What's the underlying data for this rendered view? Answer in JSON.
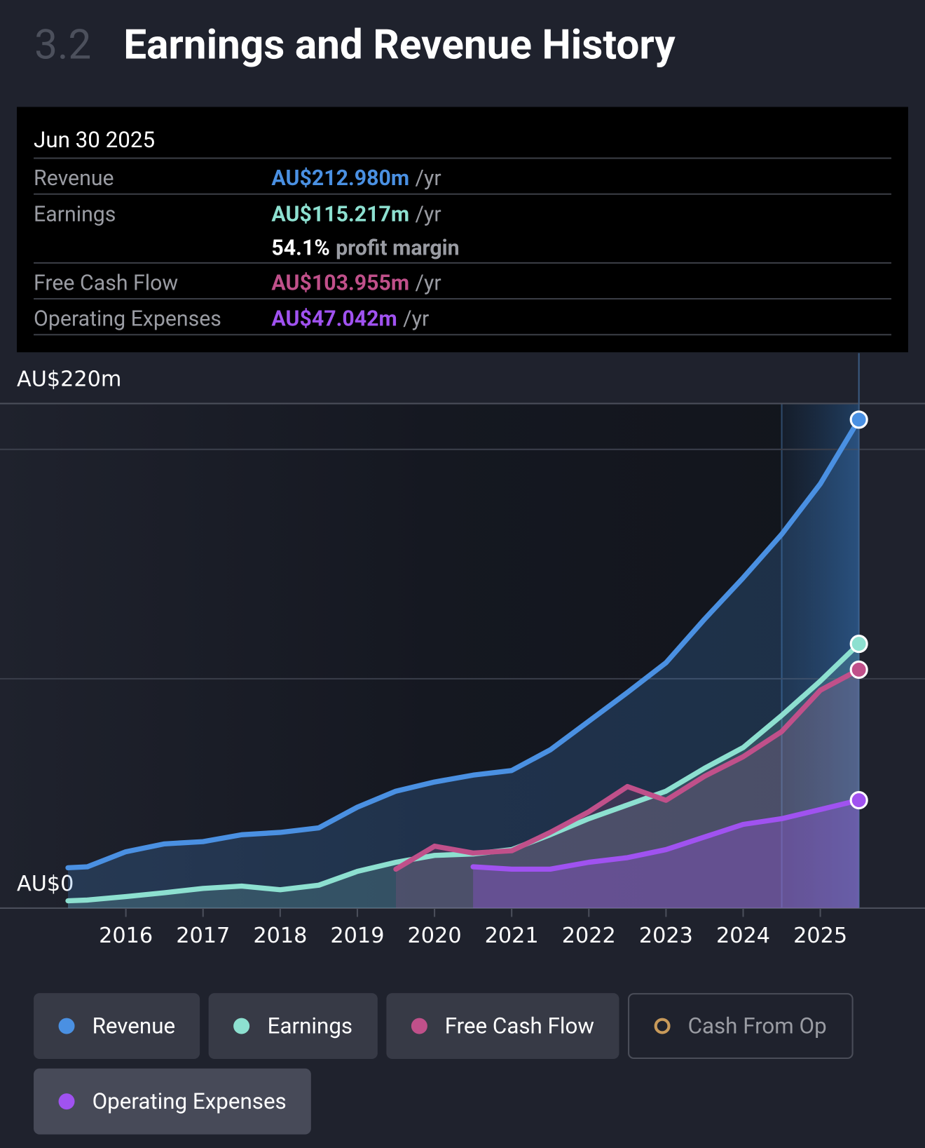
{
  "header": {
    "section": "3.2",
    "title": "Earnings and Revenue History"
  },
  "tooltip": {
    "date": "Jun 30 2025",
    "rows": [
      {
        "label": "Revenue",
        "value": "AU$212.980m",
        "unit": "/yr",
        "color": "#4a90e2"
      },
      {
        "label": "Earnings",
        "value": "AU$115.217m",
        "unit": "/yr",
        "color": "#8de0d0",
        "extra_value": "54.1%",
        "extra_text": "profit margin"
      },
      {
        "label": "Free Cash Flow",
        "value": "AU$103.955m",
        "unit": "/yr",
        "color": "#c0508a"
      },
      {
        "label": "Operating Expenses",
        "value": "AU$47.042m",
        "unit": "/yr",
        "color": "#a052f0"
      }
    ]
  },
  "chart_data": {
    "type": "line",
    "x": [
      2015.25,
      2015.5,
      2016,
      2016.5,
      2017,
      2017.5,
      2018,
      2018.5,
      2019,
      2019.5,
      2020,
      2020.5,
      2021,
      2021.5,
      2022,
      2022.5,
      2023,
      2023.5,
      2024,
      2024.5,
      2025,
      2025.5
    ],
    "xlim": [
      2014.5,
      2026.2
    ],
    "xticks": [
      2016,
      2017,
      2018,
      2019,
      2020,
      2021,
      2022,
      2023,
      2024,
      2025
    ],
    "ylim": [
      0,
      220
    ],
    "yticks": [
      {
        "value": 0,
        "label": "AU$0"
      },
      {
        "value": 220,
        "label": "AU$220m"
      }
    ],
    "gridlines": [
      100,
      200
    ],
    "highlight_x": [
      2024.5,
      2025.5
    ],
    "series": [
      {
        "name": "Revenue",
        "color": "#4a90e2",
        "enabled": true,
        "values": [
          17.6,
          18,
          24.6,
          28,
          29,
          32,
          33,
          35,
          44,
          51,
          55,
          58,
          60,
          69,
          81.5,
          94,
          107,
          126,
          144,
          163,
          185,
          212.98
        ]
      },
      {
        "name": "Earnings",
        "color": "#8de0d0",
        "enabled": true,
        "values": [
          3.2,
          3.5,
          5,
          6.7,
          8.6,
          9.6,
          8,
          10,
          16,
          20,
          23,
          23.6,
          25.5,
          32,
          39,
          45,
          51,
          61,
          70,
          84,
          99,
          115.217
        ]
      },
      {
        "name": "Free Cash Flow",
        "color": "#c0508a",
        "enabled": true,
        "values": [
          null,
          null,
          null,
          null,
          null,
          null,
          null,
          null,
          null,
          17,
          27,
          24,
          25,
          33,
          42,
          53,
          47,
          57.5,
          66,
          77,
          95,
          103.955
        ]
      },
      {
        "name": "Cash From Op",
        "color": "#c89a5a",
        "enabled": false,
        "values": [
          null,
          null,
          null,
          null,
          null,
          null,
          null,
          null,
          null,
          null,
          null,
          null,
          null,
          null,
          null,
          null,
          null,
          null,
          null,
          null,
          null,
          null
        ]
      },
      {
        "name": "Operating Expenses",
        "color": "#a052f0",
        "enabled": true,
        "values": [
          null,
          null,
          null,
          null,
          null,
          null,
          null,
          null,
          null,
          null,
          null,
          18,
          17,
          17,
          20,
          22,
          25.5,
          31,
          36.5,
          39,
          43,
          47.042
        ]
      }
    ]
  }
}
